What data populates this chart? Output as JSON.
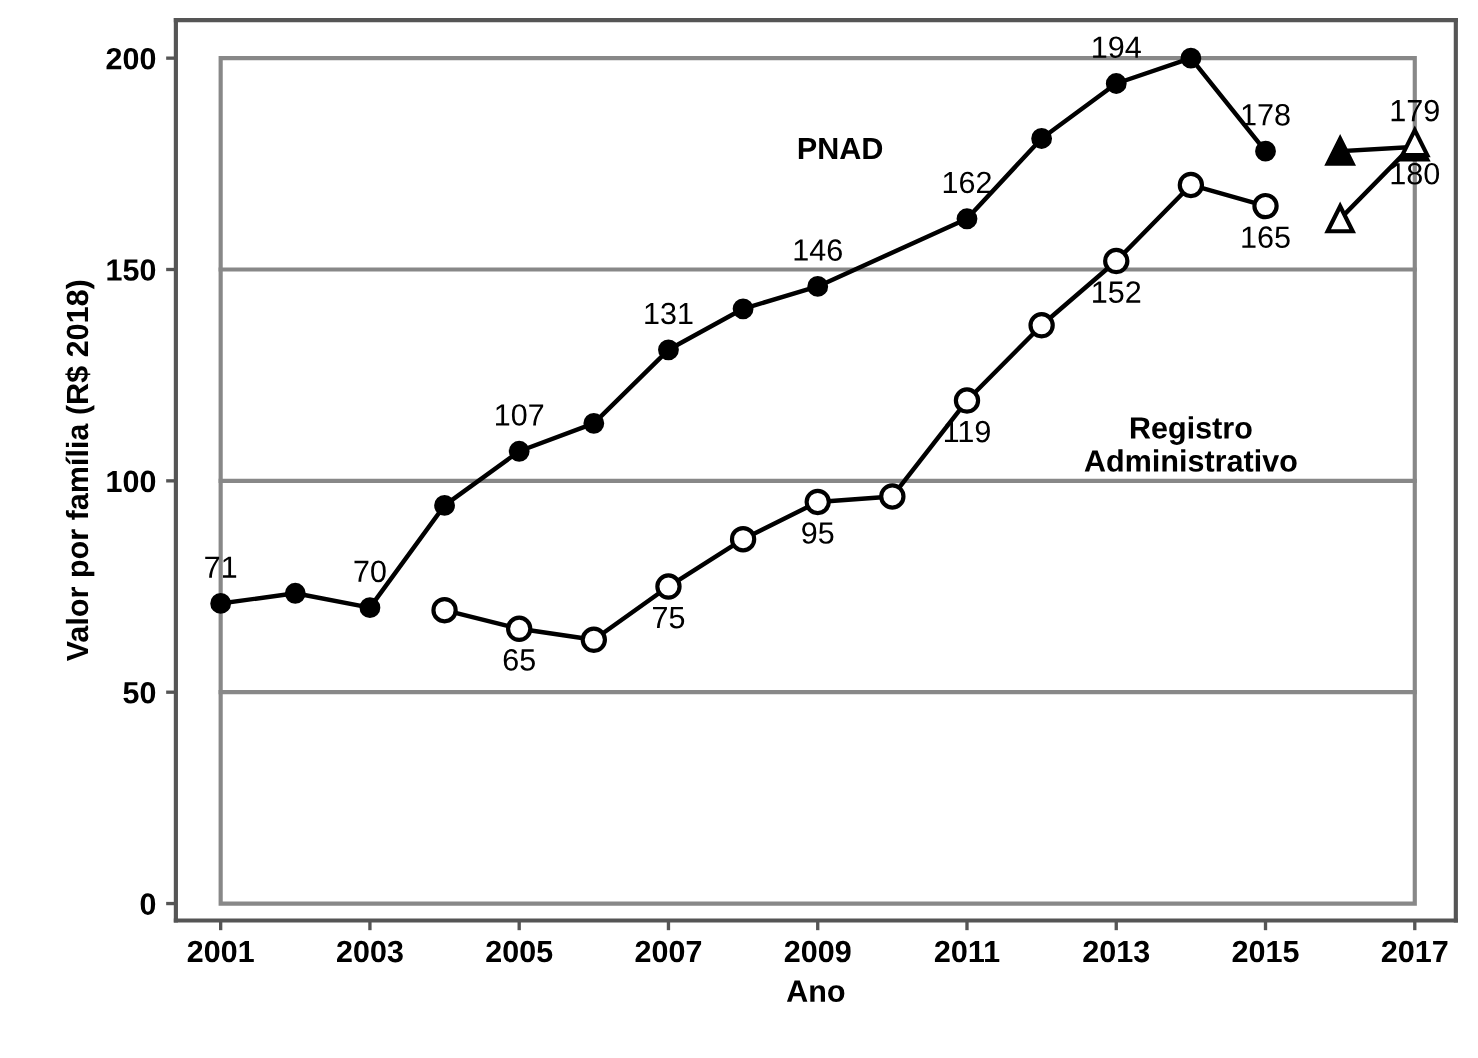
{
  "chart_data": {
    "type": "line",
    "xlabel": "Ano",
    "ylabel": "Valor por família (R$ 2018)",
    "xlim": [
      2000.4,
      2017.55
    ],
    "ylim": [
      -4,
      209
    ],
    "xticks": [
      2001,
      2003,
      2005,
      2007,
      2009,
      2011,
      2013,
      2015,
      2017
    ],
    "yticks": [
      0,
      50,
      100,
      150,
      200
    ],
    "grid": "y",
    "legend": false,
    "series": [
      {
        "name": "PNAD",
        "color": "#000000",
        "marker": "circle",
        "x": [
          2001,
          2002,
          2003,
          2004,
          2005,
          2006,
          2007,
          2008,
          2009,
          2011,
          2012,
          2013,
          2014,
          2015
        ],
        "values": [
          71,
          73.4,
          70,
          94.2,
          107,
          113.6,
          131,
          140.7,
          146,
          162,
          181,
          194,
          200,
          178
        ],
        "value_labels": [
          "71",
          null,
          "70",
          null,
          "107",
          null,
          "131",
          null,
          "146",
          "162",
          null,
          "194",
          null,
          "178"
        ]
      },
      {
        "name": "Registro\nAdministrativo",
        "color": "#000000",
        "marker": "circle",
        "x": [
          2004,
          2005,
          2006,
          2007,
          2008,
          2009,
          2010,
          2011,
          2012,
          2013,
          2014,
          2015
        ],
        "values": [
          69.4,
          65,
          62.4,
          75,
          86.2,
          95,
          96.3,
          119,
          136.8,
          152,
          170,
          165
        ],
        "value_labels": [
          null,
          "65",
          null,
          "75",
          null,
          "95",
          null,
          "119",
          null,
          "152",
          null,
          "165"
        ]
      },
      {
        "color": "#000000",
        "marker": "triangle",
        "x": [
          2016,
          2017
        ],
        "values": [
          178,
          179
        ],
        "value_labels": [
          null,
          "179"
        ]
      },
      {
        "color": "#000000",
        "marker": "triangle",
        "x": [
          2016,
          2017
        ],
        "values": [
          162,
          180
        ],
        "value_labels": [
          null,
          "180"
        ]
      }
    ]
  }
}
